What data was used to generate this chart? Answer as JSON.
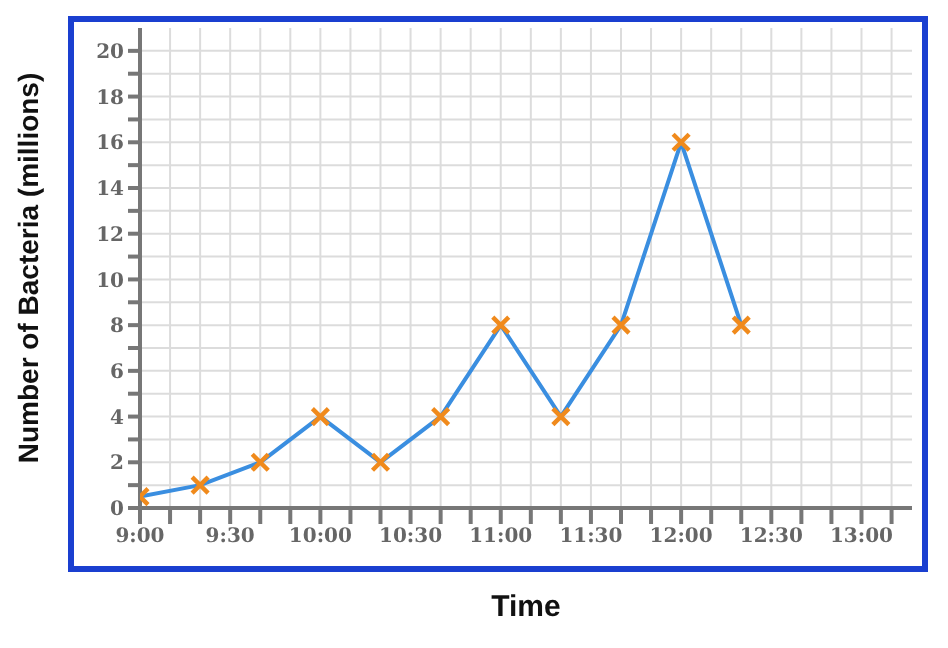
{
  "chart_data": {
    "type": "line",
    "xlabel": "Time",
    "ylabel": "Number of Bacteria (millions)",
    "x": [
      9,
      9.3333,
      9.6667,
      10,
      10.3333,
      10.6667,
      11,
      11.3333,
      11.6667,
      12,
      12.3333
    ],
    "series": [
      {
        "color": "#3a8ee0",
        "values": [
          0.5,
          1,
          2,
          4,
          2,
          4,
          8,
          4,
          8,
          16,
          8
        ],
        "colors": [
          "#f08a1c",
          "#f08a1c",
          "#f08a1c",
          "#f08a1c",
          "#f08a1c",
          "#f08a1c",
          "#f08a1c",
          "#f08a1c",
          "#f08a1c",
          "#f08a1c",
          "#f08a1c"
        ]
      }
    ],
    "xlim": [
      9,
      13.28
    ],
    "xticks": [
      {
        "value": 9,
        "label": "9:00"
      },
      {
        "value": 9.1667,
        "label": null
      },
      {
        "value": 9.3333,
        "label": null
      },
      {
        "value": 9.5,
        "label": "9:30"
      },
      {
        "value": 9.6667,
        "label": null
      },
      {
        "value": 9.8333,
        "label": null
      },
      {
        "value": 10,
        "label": "10:00"
      },
      {
        "value": 10.1667,
        "label": null
      },
      {
        "value": 10.3333,
        "label": null
      },
      {
        "value": 10.5,
        "label": "10:30"
      },
      {
        "value": 10.6667,
        "label": null
      },
      {
        "value": 10.8333,
        "label": null
      },
      {
        "value": 11,
        "label": "11:00"
      },
      {
        "value": 11.1667,
        "label": null
      },
      {
        "value": 11.3333,
        "label": null
      },
      {
        "value": 11.5,
        "label": "11:30"
      },
      {
        "value": 11.6667,
        "label": null
      },
      {
        "value": 11.8333,
        "label": null
      },
      {
        "value": 12,
        "label": "12:00"
      },
      {
        "value": 12.1667,
        "label": null
      },
      {
        "value": 12.3333,
        "label": null
      },
      {
        "value": 12.5,
        "label": "12:30"
      },
      {
        "value": 12.6667,
        "label": null
      },
      {
        "value": 12.8333,
        "label": null
      },
      {
        "value": 13,
        "label": "13:00"
      },
      {
        "value": 13.1667,
        "label": null
      }
    ],
    "ylim": [
      0,
      21
    ],
    "yticks": [
      0,
      {
        "value": 1,
        "label": null
      },
      2,
      {
        "value": 3,
        "label": null
      },
      4,
      {
        "value": 5,
        "label": null
      },
      6,
      {
        "value": 7,
        "label": null
      },
      8,
      {
        "value": 9,
        "label": null
      },
      10,
      {
        "value": 11,
        "label": null
      },
      12,
      {
        "value": 13,
        "label": null
      },
      14,
      {
        "value": 15,
        "label": null
      },
      16,
      {
        "value": 17,
        "label": null
      },
      18,
      {
        "value": 19,
        "label": null
      },
      20
    ],
    "grid": true,
    "marker": "cross",
    "line_style": "solid",
    "legend": false
  }
}
